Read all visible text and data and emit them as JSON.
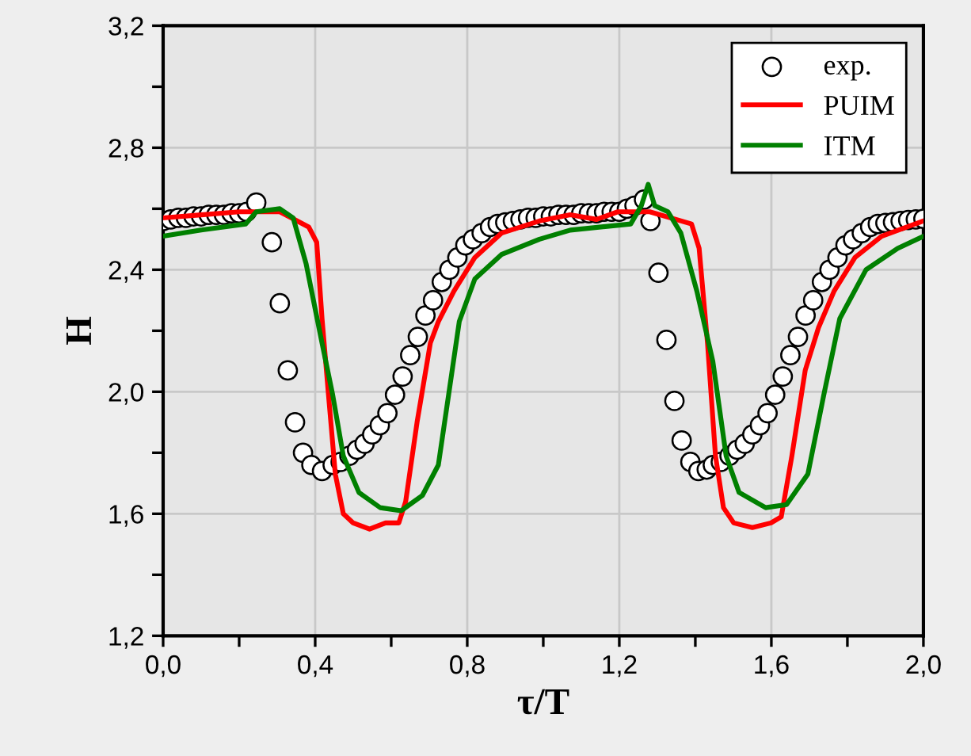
{
  "chart_data": {
    "type": "line",
    "xlabel": "τ/T",
    "ylabel": "H",
    "xlim": [
      0,
      2
    ],
    "ylim": [
      1.2,
      3.2
    ],
    "xticks": [
      {
        "value": 0,
        "label": "0,0"
      },
      {
        "value": 0.2,
        "label": null
      },
      {
        "value": 0.4,
        "label": "0,4"
      },
      {
        "value": 0.6,
        "label": null
      },
      {
        "value": 0.8,
        "label": "0,8"
      },
      {
        "value": 1.0,
        "label": null
      },
      {
        "value": 1.2,
        "label": "1,2"
      },
      {
        "value": 1.4,
        "label": null
      },
      {
        "value": 1.6,
        "label": "1,6"
      },
      {
        "value": 1.8,
        "label": null
      },
      {
        "value": 2.0,
        "label": "2,0"
      }
    ],
    "yticks": [
      {
        "value": 1.2,
        "label": "1,2"
      },
      {
        "value": 1.4,
        "label": null
      },
      {
        "value": 1.6,
        "label": "1,6"
      },
      {
        "value": 1.8,
        "label": null
      },
      {
        "value": 2.0,
        "label": "2,0"
      },
      {
        "value": 2.2,
        "label": null
      },
      {
        "value": 2.4,
        "label": "2,4"
      },
      {
        "value": 2.6,
        "label": null
      },
      {
        "value": 2.8,
        "label": "2,8"
      },
      {
        "value": 3.0,
        "label": null
      },
      {
        "value": 3.2,
        "label": "3,2"
      }
    ],
    "grid": true,
    "legend": "top right",
    "series": [
      {
        "name": "exp.",
        "type": "scatter",
        "marker": "circle",
        "color": "#ffffff",
        "x": [
          0,
          0.02,
          0.04,
          0.06,
          0.08,
          0.1,
          0.12,
          0.14,
          0.16,
          0.18,
          0.2,
          0.22,
          0.245,
          0.286,
          0.307,
          0.328,
          0.347,
          0.368,
          0.39,
          0.418,
          0.446,
          0.467,
          0.49,
          0.51,
          0.53,
          0.55,
          0.57,
          0.59,
          0.61,
          0.63,
          0.65,
          0.67,
          0.69,
          0.71,
          0.733,
          0.753,
          0.774,
          0.795,
          0.815,
          0.838,
          0.86,
          0.88,
          0.9,
          0.92,
          0.94,
          0.96,
          0.98,
          1.0,
          1.02,
          1.04,
          1.06,
          1.08,
          1.1,
          1.12,
          1.14,
          1.16,
          1.18,
          1.2,
          1.22,
          1.24,
          1.265,
          1.282,
          1.303,
          1.324,
          1.345,
          1.364,
          1.387,
          1.408,
          1.43,
          1.446,
          1.467,
          1.49,
          1.51,
          1.53,
          1.55,
          1.57,
          1.59,
          1.61,
          1.63,
          1.65,
          1.67,
          1.69,
          1.71,
          1.733,
          1.753,
          1.774,
          1.795,
          1.815,
          1.838,
          1.86,
          1.88,
          1.9,
          1.92,
          1.94,
          1.96,
          1.98,
          2.0
        ],
        "values": [
          2.56,
          2.565,
          2.57,
          2.57,
          2.575,
          2.575,
          2.58,
          2.58,
          2.58,
          2.585,
          2.585,
          2.59,
          2.62,
          2.49,
          2.29,
          2.07,
          1.9,
          1.8,
          1.76,
          1.74,
          1.76,
          1.77,
          1.79,
          1.81,
          1.83,
          1.86,
          1.89,
          1.93,
          1.99,
          2.05,
          2.12,
          2.18,
          2.25,
          2.3,
          2.36,
          2.4,
          2.44,
          2.48,
          2.5,
          2.52,
          2.54,
          2.55,
          2.555,
          2.56,
          2.565,
          2.57,
          2.57,
          2.575,
          2.575,
          2.58,
          2.58,
          2.58,
          2.585,
          2.585,
          2.585,
          2.59,
          2.59,
          2.59,
          2.6,
          2.61,
          2.63,
          2.56,
          2.39,
          2.17,
          1.97,
          1.84,
          1.77,
          1.74,
          1.745,
          1.76,
          1.77,
          1.79,
          1.81,
          1.83,
          1.86,
          1.89,
          1.93,
          1.99,
          2.05,
          2.12,
          2.18,
          2.25,
          2.3,
          2.36,
          2.4,
          2.44,
          2.48,
          2.5,
          2.52,
          2.54,
          2.55,
          2.553,
          2.556,
          2.56,
          2.563,
          2.565,
          2.567
        ]
      },
      {
        "name": "PUIM",
        "color": "#ff0000",
        "x": [
          0,
          0.1,
          0.2,
          0.307,
          0.383,
          0.404,
          0.418,
          0.435,
          0.453,
          0.474,
          0.5,
          0.543,
          0.585,
          0.62,
          0.638,
          0.668,
          0.703,
          0.724,
          0.765,
          0.82,
          0.89,
          0.99,
          1.071,
          1.14,
          1.196,
          1.28,
          1.39,
          1.41,
          1.432,
          1.453,
          1.474,
          1.501,
          1.55,
          1.599,
          1.626,
          1.654,
          1.689,
          1.724,
          1.765,
          1.82,
          1.89,
          2.0
        ],
        "values": [
          2.57,
          2.58,
          2.59,
          2.59,
          2.54,
          2.49,
          2.24,
          1.99,
          1.73,
          1.6,
          1.57,
          1.55,
          1.57,
          1.57,
          1.64,
          1.9,
          2.16,
          2.23,
          2.33,
          2.44,
          2.52,
          2.56,
          2.58,
          2.565,
          2.59,
          2.59,
          2.55,
          2.47,
          2.16,
          1.79,
          1.62,
          1.57,
          1.555,
          1.57,
          1.59,
          1.79,
          2.07,
          2.21,
          2.33,
          2.44,
          2.51,
          2.56
        ]
      },
      {
        "name": "ITM",
        "color": "#008000",
        "x": [
          0,
          0.1,
          0.217,
          0.245,
          0.307,
          0.342,
          0.376,
          0.418,
          0.446,
          0.474,
          0.515,
          0.571,
          0.626,
          0.682,
          0.724,
          0.751,
          0.779,
          0.82,
          0.89,
          0.99,
          1.071,
          1.23,
          1.258,
          1.276,
          1.293,
          1.328,
          1.362,
          1.404,
          1.446,
          1.481,
          1.515,
          1.585,
          1.64,
          1.696,
          1.738,
          1.78,
          1.849,
          1.932,
          2.0
        ],
        "values": [
          2.51,
          2.53,
          2.55,
          2.59,
          2.6,
          2.57,
          2.42,
          2.16,
          1.99,
          1.79,
          1.67,
          1.62,
          1.61,
          1.66,
          1.76,
          1.99,
          2.23,
          2.37,
          2.45,
          2.5,
          2.53,
          2.55,
          2.61,
          2.68,
          2.61,
          2.59,
          2.52,
          2.33,
          2.1,
          1.79,
          1.67,
          1.62,
          1.63,
          1.73,
          1.99,
          2.24,
          2.4,
          2.47,
          2.51
        ]
      }
    ]
  }
}
